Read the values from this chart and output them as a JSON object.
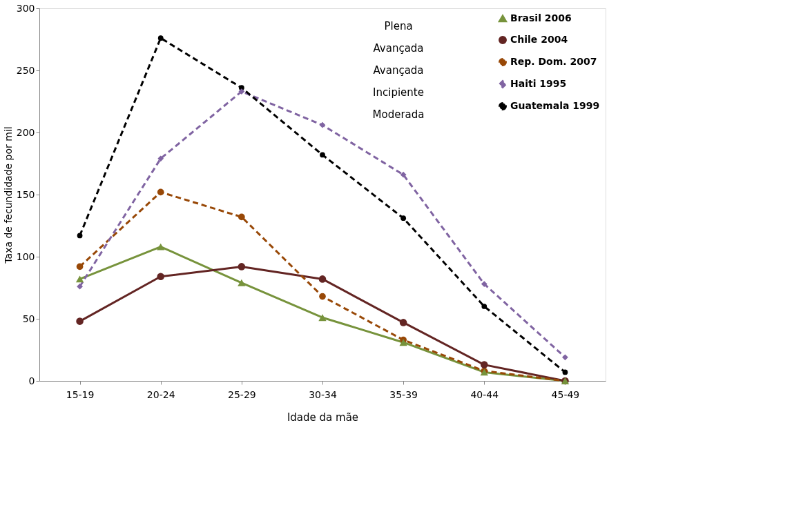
{
  "chart_data": {
    "type": "line",
    "xlabel": "Idade da mãe",
    "ylabel": "Taxa de fecundidade por mil",
    "categories": [
      "15-19",
      "20-24",
      "25-29",
      "30-34",
      "35-39",
      "40-44",
      "45-49"
    ],
    "series": [
      {
        "name": "Brasil 2006",
        "color": "#77933c",
        "marker": "triangle",
        "line_style": "solid",
        "values": [
          82,
          108,
          79,
          51,
          31,
          7,
          0
        ]
      },
      {
        "name": "Chile 2004",
        "color": "#632523",
        "marker": "circle",
        "line_style": "solid",
        "values": [
          48,
          84,
          92,
          82,
          47,
          13,
          0
        ]
      },
      {
        "name": "Rep. Dom. 2007",
        "color": "#984807",
        "marker": "circle",
        "line_style": "dashed",
        "values": [
          92,
          152,
          132,
          68,
          33,
          8,
          0
        ]
      },
      {
        "name": "Haiti 1995",
        "color": "#8064a2",
        "marker": "diamond",
        "line_style": "dashed",
        "values": [
          76,
          179,
          233,
          206,
          166,
          78,
          19
        ]
      },
      {
        "name": "Guatemala 1999",
        "color": "#000000",
        "marker": "circle",
        "line_style": "dashed",
        "values": [
          117,
          276,
          236,
          182,
          131,
          60,
          7
        ]
      }
    ],
    "ylim": [
      0,
      300
    ],
    "yticks": [
      0,
      50,
      100,
      150,
      200,
      250,
      300
    ],
    "grid": false,
    "legend": "top right",
    "annotations": [
      "Plena",
      "Avançada",
      "Avançada",
      "Incipiente",
      "Moderada"
    ]
  }
}
